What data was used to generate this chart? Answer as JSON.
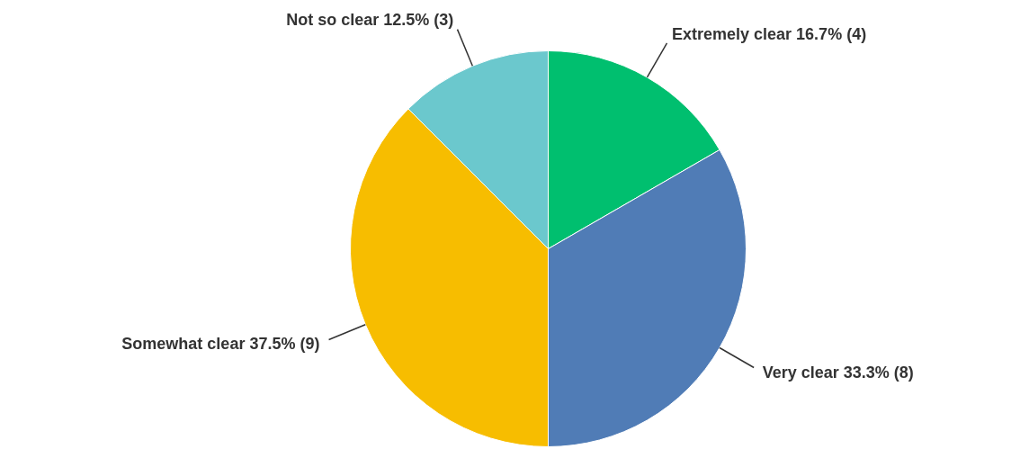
{
  "chart_data": {
    "type": "pie",
    "categories": [
      "Extremely clear",
      "Very clear",
      "Somewhat clear",
      "Not so clear"
    ],
    "values": [
      4,
      8,
      9,
      3
    ],
    "value_labels": [
      "16.7% (4)",
      "33.3% (8)",
      "37.5% (9)",
      "12.5% (3)"
    ],
    "colors": [
      "#00bf6f",
      "#507cb6",
      "#f7bd00",
      "#6bc8cd"
    ],
    "legend": false
  }
}
